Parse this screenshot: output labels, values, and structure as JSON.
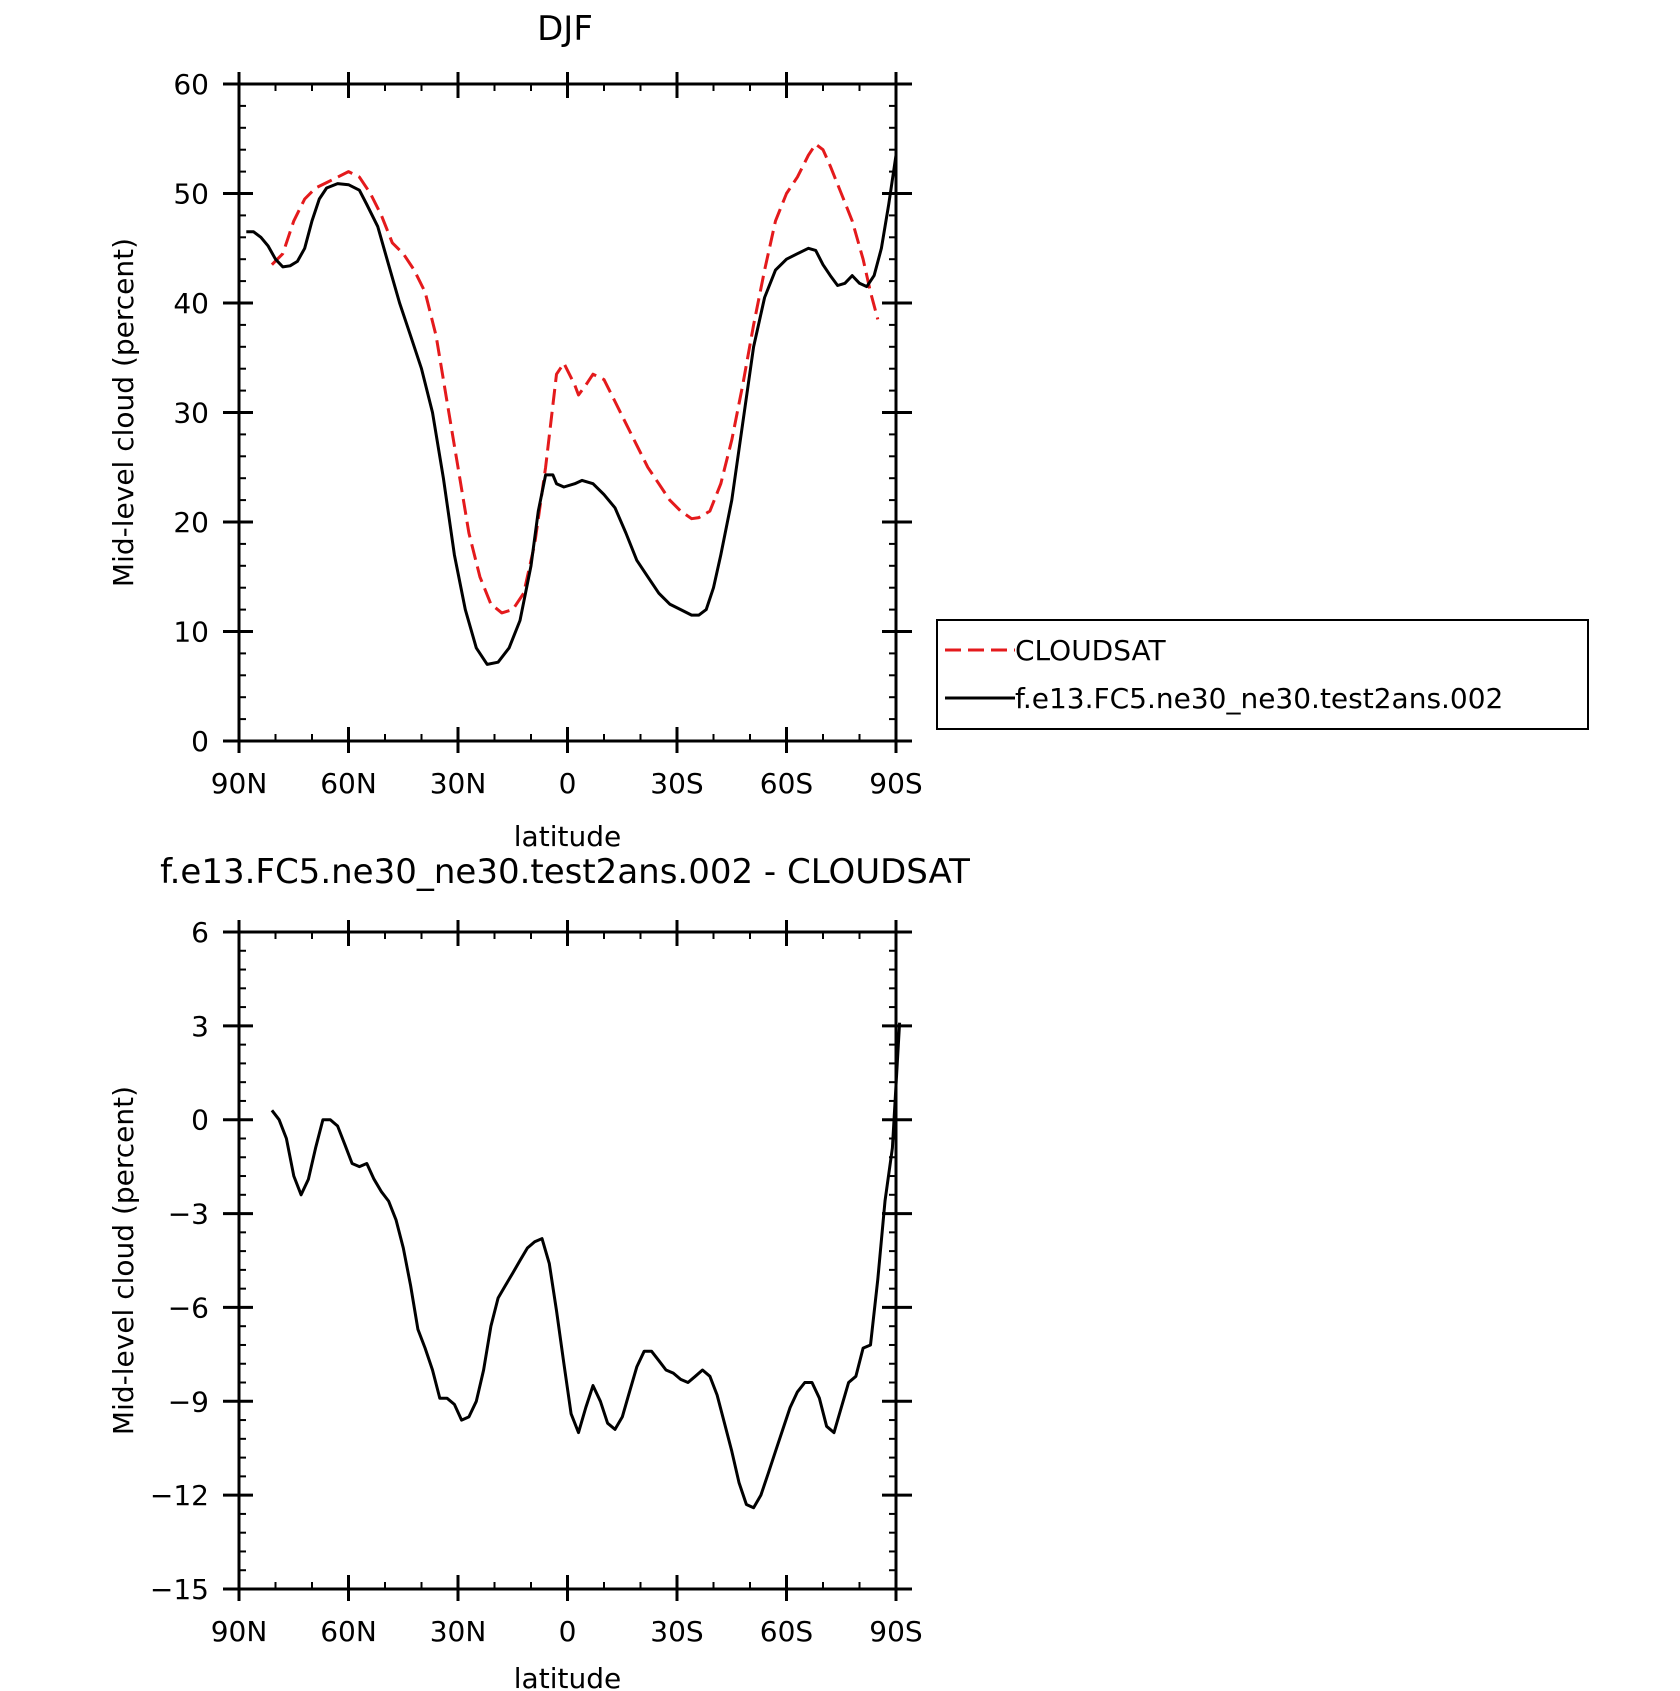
{
  "chart_data": [
    {
      "type": "line",
      "title": "DJF",
      "xlabel": "latitude",
      "ylabel": "Mid-level cloud (percent)",
      "xlim": [
        90,
        -90
      ],
      "ylim": [
        0,
        60
      ],
      "x_ticks": [
        {
          "value": 90,
          "label": "90N"
        },
        {
          "value": 60,
          "label": "60N"
        },
        {
          "value": 30,
          "label": "30N"
        },
        {
          "value": 0,
          "label": "0"
        },
        {
          "value": -30,
          "label": "30S"
        },
        {
          "value": -60,
          "label": "60S"
        },
        {
          "value": -90,
          "label": "90S"
        }
      ],
      "y_ticks": [
        {
          "value": 0,
          "label": "0"
        },
        {
          "value": 10,
          "label": "10"
        },
        {
          "value": 20,
          "label": "20"
        },
        {
          "value": 30,
          "label": "30"
        },
        {
          "value": 40,
          "label": "40"
        },
        {
          "value": 50,
          "label": "50"
        },
        {
          "value": 60,
          "label": "60"
        }
      ],
      "legend_position": "right",
      "series": [
        {
          "name": "CLOUDSAT",
          "color": "#e41a1c",
          "dash": "dashed",
          "points": [
            [
              81,
              43.5
            ],
            [
              78,
              44.5
            ],
            [
              75,
              47.5
            ],
            [
              72,
              49.5
            ],
            [
              69,
              50.5
            ],
            [
              66,
              51
            ],
            [
              63,
              51.5
            ],
            [
              60,
              52
            ],
            [
              57,
              51.5
            ],
            [
              54,
              50
            ],
            [
              51,
              48
            ],
            [
              48,
              45.5
            ],
            [
              45,
              44.5
            ],
            [
              42,
              43
            ],
            [
              39,
              41
            ],
            [
              36,
              37
            ],
            [
              33,
              31
            ],
            [
              30,
              25
            ],
            [
              27,
              19
            ],
            [
              24,
              15
            ],
            [
              21,
              12.5
            ],
            [
              18,
              11.7
            ],
            [
              15,
              12
            ],
            [
              12,
              13.5
            ],
            [
              9,
              18
            ],
            [
              6,
              25
            ],
            [
              3,
              33.5
            ],
            [
              1,
              34.5
            ],
            [
              -2,
              32.5
            ],
            [
              -3,
              31.6
            ],
            [
              -5,
              32.5
            ],
            [
              -7,
              33.5
            ],
            [
              -10,
              33
            ],
            [
              -13,
              31
            ],
            [
              -16,
              29
            ],
            [
              -19,
              27
            ],
            [
              -22,
              25
            ],
            [
              -25,
              23.5
            ],
            [
              -28,
              22
            ],
            [
              -31,
              21
            ],
            [
              -34,
              20.3
            ],
            [
              -36,
              20.4
            ],
            [
              -39,
              21
            ],
            [
              -42,
              23.5
            ],
            [
              -45,
              27.5
            ],
            [
              -48,
              32.5
            ],
            [
              -51,
              38
            ],
            [
              -54,
              43
            ],
            [
              -57,
              47.5
            ],
            [
              -60,
              50
            ],
            [
              -63,
              51.5
            ],
            [
              -66,
              53.5
            ],
            [
              -68,
              54.5
            ],
            [
              -70,
              54
            ],
            [
              -72,
              52.5
            ],
            [
              -75,
              50
            ],
            [
              -78,
              47.5
            ],
            [
              -81,
              44
            ],
            [
              -83,
              41
            ],
            [
              -85,
              38.5
            ]
          ]
        },
        {
          "name": "f.e13.FC5.ne30_ne30.test2ans.002",
          "color": "#000000",
          "dash": "solid",
          "points": [
            [
              88,
              46.5
            ],
            [
              86,
              46.5
            ],
            [
              84,
              46
            ],
            [
              82,
              45.2
            ],
            [
              80,
              44
            ],
            [
              78,
              43.3
            ],
            [
              76,
              43.4
            ],
            [
              74,
              43.8
            ],
            [
              72,
              45
            ],
            [
              70,
              47.5
            ],
            [
              68,
              49.5
            ],
            [
              66,
              50.5
            ],
            [
              63,
              50.9
            ],
            [
              60,
              50.8
            ],
            [
              57,
              50.3
            ],
            [
              55,
              49
            ],
            [
              52,
              47
            ],
            [
              49,
              43.5
            ],
            [
              46,
              40
            ],
            [
              43,
              37
            ],
            [
              40,
              34
            ],
            [
              37,
              30
            ],
            [
              34,
              24
            ],
            [
              31,
              17
            ],
            [
              28,
              12
            ],
            [
              25,
              8.5
            ],
            [
              22,
              7
            ],
            [
              19,
              7.2
            ],
            [
              16,
              8.5
            ],
            [
              13,
              11
            ],
            [
              10,
              16
            ],
            [
              8,
              21
            ],
            [
              6,
              24.3
            ],
            [
              4,
              24.3
            ],
            [
              3,
              23.5
            ],
            [
              1,
              23.2
            ],
            [
              -2,
              23.5
            ],
            [
              -4,
              23.8
            ],
            [
              -7,
              23.5
            ],
            [
              -10,
              22.5
            ],
            [
              -13,
              21.3
            ],
            [
              -16,
              19
            ],
            [
              -19,
              16.5
            ],
            [
              -22,
              15
            ],
            [
              -25,
              13.5
            ],
            [
              -28,
              12.5
            ],
            [
              -31,
              12
            ],
            [
              -34,
              11.5
            ],
            [
              -36,
              11.5
            ],
            [
              -38,
              12
            ],
            [
              -40,
              14
            ],
            [
              -42,
              17
            ],
            [
              -45,
              22
            ],
            [
              -48,
              29
            ],
            [
              -51,
              36
            ],
            [
              -54,
              40.5
            ],
            [
              -57,
              43
            ],
            [
              -60,
              44
            ],
            [
              -63,
              44.5
            ],
            [
              -66,
              45
            ],
            [
              -68,
              44.8
            ],
            [
              -70,
              43.5
            ],
            [
              -72,
              42.5
            ],
            [
              -74,
              41.6
            ],
            [
              -76,
              41.8
            ],
            [
              -78,
              42.5
            ],
            [
              -80,
              41.8
            ],
            [
              -82,
              41.5
            ],
            [
              -84,
              42.5
            ],
            [
              -86,
              45
            ],
            [
              -88,
              49
            ],
            [
              -90,
              53.5
            ]
          ]
        }
      ]
    },
    {
      "type": "line",
      "title": "f.e13.FC5.ne30_ne30.test2ans.002 - CLOUDSAT",
      "xlabel": "latitude",
      "ylabel": "Mid-level cloud (percent)",
      "xlim": [
        90,
        -90
      ],
      "ylim": [
        -15,
        6
      ],
      "x_ticks": [
        {
          "value": 90,
          "label": "90N"
        },
        {
          "value": 60,
          "label": "60N"
        },
        {
          "value": 30,
          "label": "30N"
        },
        {
          "value": 0,
          "label": "0"
        },
        {
          "value": -30,
          "label": "30S"
        },
        {
          "value": -60,
          "label": "60S"
        },
        {
          "value": -90,
          "label": "90S"
        }
      ],
      "y_ticks": [
        {
          "value": -15,
          "label": "−15"
        },
        {
          "value": -12,
          "label": "−12"
        },
        {
          "value": -9,
          "label": "−9"
        },
        {
          "value": -6,
          "label": "−6"
        },
        {
          "value": -3,
          "label": "−3"
        },
        {
          "value": 0,
          "label": "0"
        },
        {
          "value": 3,
          "label": "3"
        },
        {
          "value": 6,
          "label": "6"
        }
      ],
      "series": [
        {
          "color": "#000000",
          "dash": "solid",
          "points": [
            [
              81,
              0.3
            ],
            [
              79,
              0
            ],
            [
              77,
              -0.6
            ],
            [
              75,
              -1.8
            ],
            [
              73,
              -2.4
            ],
            [
              71,
              -1.9
            ],
            [
              69,
              -0.9
            ],
            [
              67,
              0
            ],
            [
              65,
              0
            ],
            [
              63,
              -0.2
            ],
            [
              61,
              -0.8
            ],
            [
              59,
              -1.4
            ],
            [
              57,
              -1.5
            ],
            [
              55,
              -1.4
            ],
            [
              53,
              -1.9
            ],
            [
              51,
              -2.3
            ],
            [
              49,
              -2.6
            ],
            [
              47,
              -3.2
            ],
            [
              45,
              -4.1
            ],
            [
              43,
              -5.3
            ],
            [
              41,
              -6.7
            ],
            [
              39,
              -7.3
            ],
            [
              37,
              -8
            ],
            [
              35,
              -8.9
            ],
            [
              33,
              -8.9
            ],
            [
              31,
              -9.1
            ],
            [
              29,
              -9.6
            ],
            [
              27,
              -9.5
            ],
            [
              25,
              -9
            ],
            [
              23,
              -8
            ],
            [
              21,
              -6.6
            ],
            [
              19,
              -5.7
            ],
            [
              17,
              -5.3
            ],
            [
              15,
              -4.9
            ],
            [
              13,
              -4.5
            ],
            [
              11,
              -4.1
            ],
            [
              9,
              -3.9
            ],
            [
              7,
              -3.8
            ],
            [
              5,
              -4.6
            ],
            [
              3,
              -6.1
            ],
            [
              1,
              -7.8
            ],
            [
              -1,
              -9.4
            ],
            [
              -3,
              -10
            ],
            [
              -5,
              -9.2
            ],
            [
              -7,
              -8.5
            ],
            [
              -9,
              -9
            ],
            [
              -11,
              -9.7
            ],
            [
              -13,
              -9.9
            ],
            [
              -15,
              -9.5
            ],
            [
              -17,
              -8.7
            ],
            [
              -19,
              -7.9
            ],
            [
              -21,
              -7.4
            ],
            [
              -23,
              -7.4
            ],
            [
              -25,
              -7.7
            ],
            [
              -27,
              -8
            ],
            [
              -29,
              -8.1
            ],
            [
              -31,
              -8.3
            ],
            [
              -33,
              -8.4
            ],
            [
              -35,
              -8.2
            ],
            [
              -37,
              -8
            ],
            [
              -39,
              -8.2
            ],
            [
              -41,
              -8.8
            ],
            [
              -43,
              -9.7
            ],
            [
              -45,
              -10.6
            ],
            [
              -47,
              -11.6
            ],
            [
              -49,
              -12.3
            ],
            [
              -51,
              -12.4
            ],
            [
              -53,
              -12
            ],
            [
              -55,
              -11.3
            ],
            [
              -57,
              -10.6
            ],
            [
              -59,
              -9.9
            ],
            [
              -61,
              -9.2
            ],
            [
              -63,
              -8.7
            ],
            [
              -65,
              -8.4
            ],
            [
              -67,
              -8.4
            ],
            [
              -69,
              -8.9
            ],
            [
              -71,
              -9.8
            ],
            [
              -73,
              -10
            ],
            [
              -75,
              -9.2
            ],
            [
              -77,
              -8.4
            ],
            [
              -79,
              -8.2
            ],
            [
              -81,
              -7.3
            ],
            [
              -83,
              -7.2
            ],
            [
              -85,
              -5.1
            ],
            [
              -87,
              -2.6
            ],
            [
              -89,
              -0.9
            ],
            [
              -91,
              3.1
            ]
          ]
        }
      ]
    }
  ]
}
